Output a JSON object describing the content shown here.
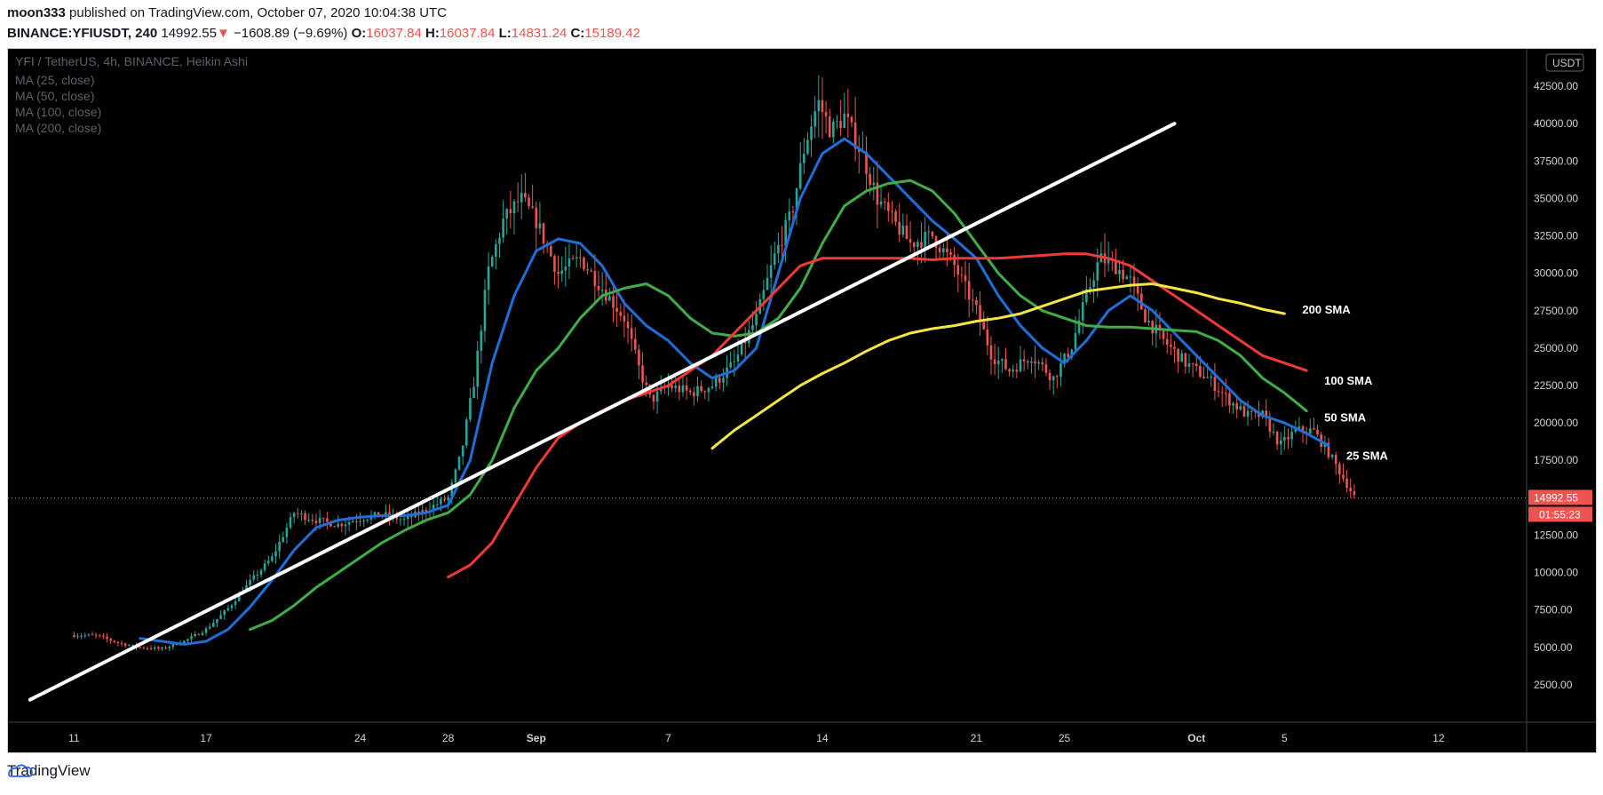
{
  "header": {
    "author": "moon333",
    "published_text": "published on TradingView.com, October 07, 2020 10:04:38 UTC",
    "symbol": "BINANCE:YFIUSDT, 240",
    "price": "14992.55",
    "change_arrow": "▼",
    "change": "−1608.89 (−9.69%)",
    "o_label": "O:",
    "o_value": "16037.84",
    "h_label": "H:",
    "h_value": "16037.84",
    "l_label": "L:",
    "l_value": "14831.24",
    "c_label": "C:",
    "c_value": "15189.42"
  },
  "legend": {
    "title": "YFI / TetherUS, 4h, BINANCE, Heikin Ashi",
    "ma_lines": [
      "MA (25, close)",
      "MA (50, close)",
      "MA (100, close)",
      "MA (200, close)"
    ]
  },
  "footer": {
    "brand": "TradingView"
  },
  "colors": {
    "up": "#26a69a",
    "down": "#ef5350",
    "ma25": "#1e6fd9",
    "ma50": "#3fae49",
    "ma100": "#ef3b36",
    "ma200": "#f5e642",
    "trend": "#ffffff",
    "price_line": "#ef5350"
  },
  "chart_data": {
    "type": "candlestick",
    "title": "YFI / TetherUS, 4h, BINANCE, Heikin Ashi",
    "currency_badge": "USDT",
    "y_ticks": [
      2500,
      5000,
      7500,
      10000,
      12500,
      15000,
      17500,
      20000,
      22500,
      25000,
      27500,
      30000,
      32500,
      35000,
      37500,
      40000,
      42500
    ],
    "y_tick_labels": [
      "2500.00",
      "5000.00",
      "7500.00",
      "10000.00",
      "12500.00",
      "15000.00",
      "17500.00",
      "20000.00",
      "22500.00",
      "25000.00",
      "27500.00",
      "30000.00",
      "32500.00",
      "35000.00",
      "37500.00",
      "40000.00",
      "42500.00"
    ],
    "ylim": [
      0,
      45000
    ],
    "x_ticks": [
      {
        "label": "11",
        "day": 11
      },
      {
        "label": "17",
        "day": 17
      },
      {
        "label": "24",
        "day": 24
      },
      {
        "label": "28",
        "day": 28
      },
      {
        "label": "Sep",
        "day": 32
      },
      {
        "label": "7",
        "day": 38
      },
      {
        "label": "14",
        "day": 45
      },
      {
        "label": "21",
        "day": 52
      },
      {
        "label": "25",
        "day": 56
      },
      {
        "label": "Oct",
        "day": 62
      },
      {
        "label": "5",
        "day": 66
      },
      {
        "label": "12",
        "day": 73
      }
    ],
    "xlim_days": [
      8.0,
      77.0
    ],
    "price_series_days": [
      [
        11.0,
        5800
      ],
      [
        12.0,
        5800
      ],
      [
        13.0,
        5300
      ],
      [
        14.0,
        5000
      ],
      [
        15.0,
        4900
      ],
      [
        16.0,
        5400
      ],
      [
        17.0,
        6200
      ],
      [
        18.0,
        7600
      ],
      [
        19.0,
        9400
      ],
      [
        20.0,
        11000
      ],
      [
        21.0,
        14000
      ],
      [
        22.0,
        13500
      ],
      [
        23.0,
        13200
      ],
      [
        24.0,
        13600
      ],
      [
        25.0,
        13900
      ],
      [
        26.0,
        13500
      ],
      [
        27.0,
        14200
      ],
      [
        28.0,
        15000
      ],
      [
        28.6,
        18000
      ],
      [
        29.2,
        23000
      ],
      [
        29.8,
        30000
      ],
      [
        30.5,
        33500
      ],
      [
        31.3,
        35000
      ],
      [
        32.0,
        33500
      ],
      [
        33.0,
        30000
      ],
      [
        34.0,
        31000
      ],
      [
        35.0,
        29000
      ],
      [
        36.0,
        27000
      ],
      [
        36.7,
        23500
      ],
      [
        37.2,
        21500
      ],
      [
        38.0,
        22500
      ],
      [
        39.0,
        22000
      ],
      [
        40.0,
        22500
      ],
      [
        41.0,
        24000
      ],
      [
        42.0,
        27000
      ],
      [
        42.8,
        31000
      ],
      [
        43.6,
        34000
      ],
      [
        44.2,
        38500
      ],
      [
        44.8,
        41500
      ],
      [
        45.4,
        39500
      ],
      [
        46.0,
        40500
      ],
      [
        46.8,
        38000
      ],
      [
        47.5,
        35000
      ],
      [
        48.2,
        33500
      ],
      [
        49.0,
        32000
      ],
      [
        50.0,
        32500
      ],
      [
        51.0,
        30500
      ],
      [
        52.0,
        27500
      ],
      [
        52.7,
        24500
      ],
      [
        53.5,
        23500
      ],
      [
        54.5,
        24500
      ],
      [
        55.5,
        23000
      ],
      [
        56.3,
        25000
      ],
      [
        57.0,
        28500
      ],
      [
        57.6,
        31000
      ],
      [
        58.3,
        30500
      ],
      [
        59.0,
        29500
      ],
      [
        59.7,
        27000
      ],
      [
        60.5,
        25500
      ],
      [
        61.5,
        24000
      ],
      [
        62.5,
        23000
      ],
      [
        63.5,
        21500
      ],
      [
        64.3,
        20500
      ],
      [
        65.0,
        20500
      ],
      [
        65.8,
        18500
      ],
      [
        66.5,
        19500
      ],
      [
        67.3,
        19500
      ],
      [
        68.0,
        18000
      ],
      [
        68.8,
        16000
      ],
      [
        69.2,
        15000
      ]
    ],
    "series": [
      {
        "name": "MA (25, close)",
        "label": "25 SMA",
        "points": [
          [
            14.0,
            5600
          ],
          [
            15.0,
            5400
          ],
          [
            16.0,
            5200
          ],
          [
            17.0,
            5400
          ],
          [
            18.0,
            6200
          ],
          [
            19.0,
            7700
          ],
          [
            20.0,
            9500
          ],
          [
            21.0,
            11500
          ],
          [
            22.0,
            13000
          ],
          [
            23.0,
            13500
          ],
          [
            24.0,
            13700
          ],
          [
            25.0,
            13800
          ],
          [
            26.0,
            13800
          ],
          [
            27.0,
            14000
          ],
          [
            28.0,
            14500
          ],
          [
            29.0,
            17500
          ],
          [
            30.0,
            24000
          ],
          [
            31.0,
            28500
          ],
          [
            32.0,
            31500
          ],
          [
            33.0,
            32300
          ],
          [
            34.0,
            32000
          ],
          [
            35.0,
            30500
          ],
          [
            36.0,
            28000
          ],
          [
            37.0,
            26500
          ],
          [
            38.0,
            25500
          ],
          [
            39.0,
            24000
          ],
          [
            40.0,
            23000
          ],
          [
            41.0,
            23500
          ],
          [
            42.0,
            25000
          ],
          [
            43.0,
            30000
          ],
          [
            44.0,
            35000
          ],
          [
            45.0,
            38000
          ],
          [
            46.0,
            39000
          ],
          [
            47.0,
            38000
          ],
          [
            48.0,
            36500
          ],
          [
            49.0,
            35000
          ],
          [
            50.0,
            33500
          ],
          [
            51.0,
            32300
          ],
          [
            52.0,
            31000
          ],
          [
            53.0,
            28500
          ],
          [
            54.0,
            26500
          ],
          [
            55.0,
            25000
          ],
          [
            56.0,
            24000
          ],
          [
            57.0,
            25500
          ],
          [
            58.0,
            27500
          ],
          [
            59.0,
            28500
          ],
          [
            60.0,
            27500
          ],
          [
            61.0,
            26000
          ],
          [
            62.0,
            24500
          ],
          [
            63.0,
            23000
          ],
          [
            64.0,
            21500
          ],
          [
            65.0,
            20500
          ],
          [
            66.0,
            20000
          ],
          [
            67.0,
            19300
          ],
          [
            68.0,
            18500
          ]
        ]
      },
      {
        "name": "MA (50, close)",
        "label": "50 SMA",
        "points": [
          [
            19.0,
            6200
          ],
          [
            20.0,
            6800
          ],
          [
            21.0,
            7800
          ],
          [
            22.0,
            9000
          ],
          [
            23.0,
            10000
          ],
          [
            24.0,
            11000
          ],
          [
            25.0,
            12000
          ],
          [
            26.0,
            12800
          ],
          [
            27.0,
            13500
          ],
          [
            28.0,
            14000
          ],
          [
            29.0,
            15200
          ],
          [
            30.0,
            17500
          ],
          [
            31.0,
            21000
          ],
          [
            32.0,
            23500
          ],
          [
            33.0,
            25000
          ],
          [
            34.0,
            27000
          ],
          [
            35.0,
            28500
          ],
          [
            36.0,
            29000
          ],
          [
            37.0,
            29300
          ],
          [
            38.0,
            28500
          ],
          [
            39.0,
            27000
          ],
          [
            40.0,
            26000
          ],
          [
            41.0,
            25800
          ],
          [
            42.0,
            26000
          ],
          [
            43.0,
            27000
          ],
          [
            44.0,
            29000
          ],
          [
            45.0,
            32000
          ],
          [
            46.0,
            34500
          ],
          [
            47.0,
            35500
          ],
          [
            48.0,
            36000
          ],
          [
            49.0,
            36200
          ],
          [
            50.0,
            35500
          ],
          [
            51.0,
            34000
          ],
          [
            52.0,
            32000
          ],
          [
            53.0,
            30000
          ],
          [
            54.0,
            28500
          ],
          [
            55.0,
            27500
          ],
          [
            56.0,
            27000
          ],
          [
            57.0,
            26500
          ],
          [
            58.0,
            26400
          ],
          [
            59.0,
            26400
          ],
          [
            60.0,
            26300
          ],
          [
            61.0,
            26200
          ],
          [
            62.0,
            26100
          ],
          [
            63.0,
            25500
          ],
          [
            64.0,
            24500
          ],
          [
            65.0,
            23000
          ],
          [
            66.0,
            22000
          ],
          [
            67.0,
            20800
          ]
        ]
      },
      {
        "name": "MA (100, close)",
        "label": "100 SMA",
        "points": [
          [
            28.0,
            9700
          ],
          [
            29.0,
            10500
          ],
          [
            30.0,
            12000
          ],
          [
            31.0,
            14500
          ],
          [
            32.0,
            17000
          ],
          [
            33.0,
            19000
          ],
          [
            34.0,
            20000
          ],
          [
            35.0,
            20800
          ],
          [
            36.0,
            21500
          ],
          [
            37.0,
            22000
          ],
          [
            38.0,
            22500
          ],
          [
            39.0,
            23500
          ],
          [
            40.0,
            24500
          ],
          [
            41.0,
            26000
          ],
          [
            42.0,
            27500
          ],
          [
            43.0,
            29000
          ],
          [
            44.0,
            30500
          ],
          [
            45.0,
            31000
          ],
          [
            46.0,
            31000
          ],
          [
            47.0,
            31000
          ],
          [
            48.0,
            31000
          ],
          [
            49.0,
            31000
          ],
          [
            50.0,
            30900
          ],
          [
            51.0,
            31000
          ],
          [
            52.0,
            31000
          ],
          [
            53.0,
            31000
          ],
          [
            54.0,
            31100
          ],
          [
            55.0,
            31200
          ],
          [
            56.0,
            31300
          ],
          [
            57.0,
            31300
          ],
          [
            58.0,
            31000
          ],
          [
            59.0,
            30500
          ],
          [
            60.0,
            29500
          ],
          [
            61.0,
            28500
          ],
          [
            62.0,
            27500
          ],
          [
            63.0,
            26500
          ],
          [
            64.0,
            25500
          ],
          [
            65.0,
            24500
          ],
          [
            66.0,
            24000
          ],
          [
            67.0,
            23500
          ]
        ]
      },
      {
        "name": "MA (200, close)",
        "label": "200 SMA",
        "points": [
          [
            40.0,
            18300
          ],
          [
            41.0,
            19500
          ],
          [
            42.0,
            20500
          ],
          [
            43.0,
            21500
          ],
          [
            44.0,
            22500
          ],
          [
            45.0,
            23300
          ],
          [
            46.0,
            24000
          ],
          [
            47.0,
            24800
          ],
          [
            48.0,
            25500
          ],
          [
            49.0,
            26000
          ],
          [
            50.0,
            26300
          ],
          [
            51.0,
            26500
          ],
          [
            52.0,
            26800
          ],
          [
            53.0,
            27000
          ],
          [
            54.0,
            27300
          ],
          [
            55.0,
            27800
          ],
          [
            56.0,
            28300
          ],
          [
            57.0,
            28800
          ],
          [
            58.0,
            29000
          ],
          [
            59.0,
            29200
          ],
          [
            60.0,
            29300
          ],
          [
            61.0,
            29000
          ],
          [
            62.0,
            28700
          ],
          [
            63.0,
            28300
          ],
          [
            64.0,
            28000
          ],
          [
            65.0,
            27600
          ],
          [
            66.0,
            27300
          ]
        ]
      }
    ],
    "trendline": [
      [
        9.0,
        1500
      ],
      [
        61.0,
        40000
      ]
    ],
    "current_price": 14992.55,
    "price_label": "14992.55",
    "countdown_label": "01:55:23",
    "grid": false
  }
}
